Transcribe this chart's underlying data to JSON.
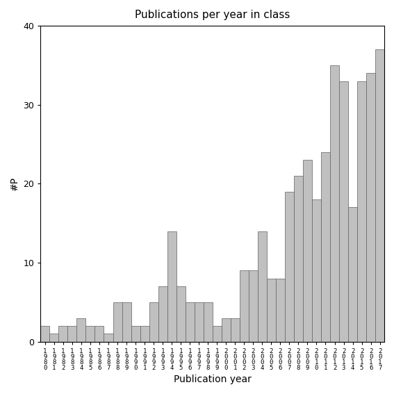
{
  "title": "Publications per year in class",
  "xlabel": "Publication year",
  "ylabel": "#P",
  "bar_color": "#c0c0c0",
  "edge_color": "#606060",
  "ylim": [
    0,
    40
  ],
  "yticks": [
    0,
    10,
    20,
    30,
    40
  ],
  "years": [
    1980,
    1981,
    1982,
    1983,
    1984,
    1985,
    1986,
    1987,
    1988,
    1989,
    1990,
    1991,
    1992,
    1993,
    1994,
    1995,
    1996,
    1997,
    1998,
    1999,
    2000,
    2001,
    2002,
    2003,
    2004,
    2005,
    2006,
    2007,
    2008,
    2009,
    2010,
    2011,
    2012,
    2013,
    2014,
    2015,
    2016,
    2017
  ],
  "values": [
    2,
    1,
    2,
    2,
    3,
    2,
    2,
    1,
    5,
    5,
    2,
    2,
    5,
    7,
    14,
    7,
    5,
    5,
    5,
    2,
    3,
    3,
    9,
    9,
    14,
    8,
    8,
    19,
    21,
    23,
    18,
    24,
    35,
    33,
    17,
    33,
    34,
    37
  ]
}
